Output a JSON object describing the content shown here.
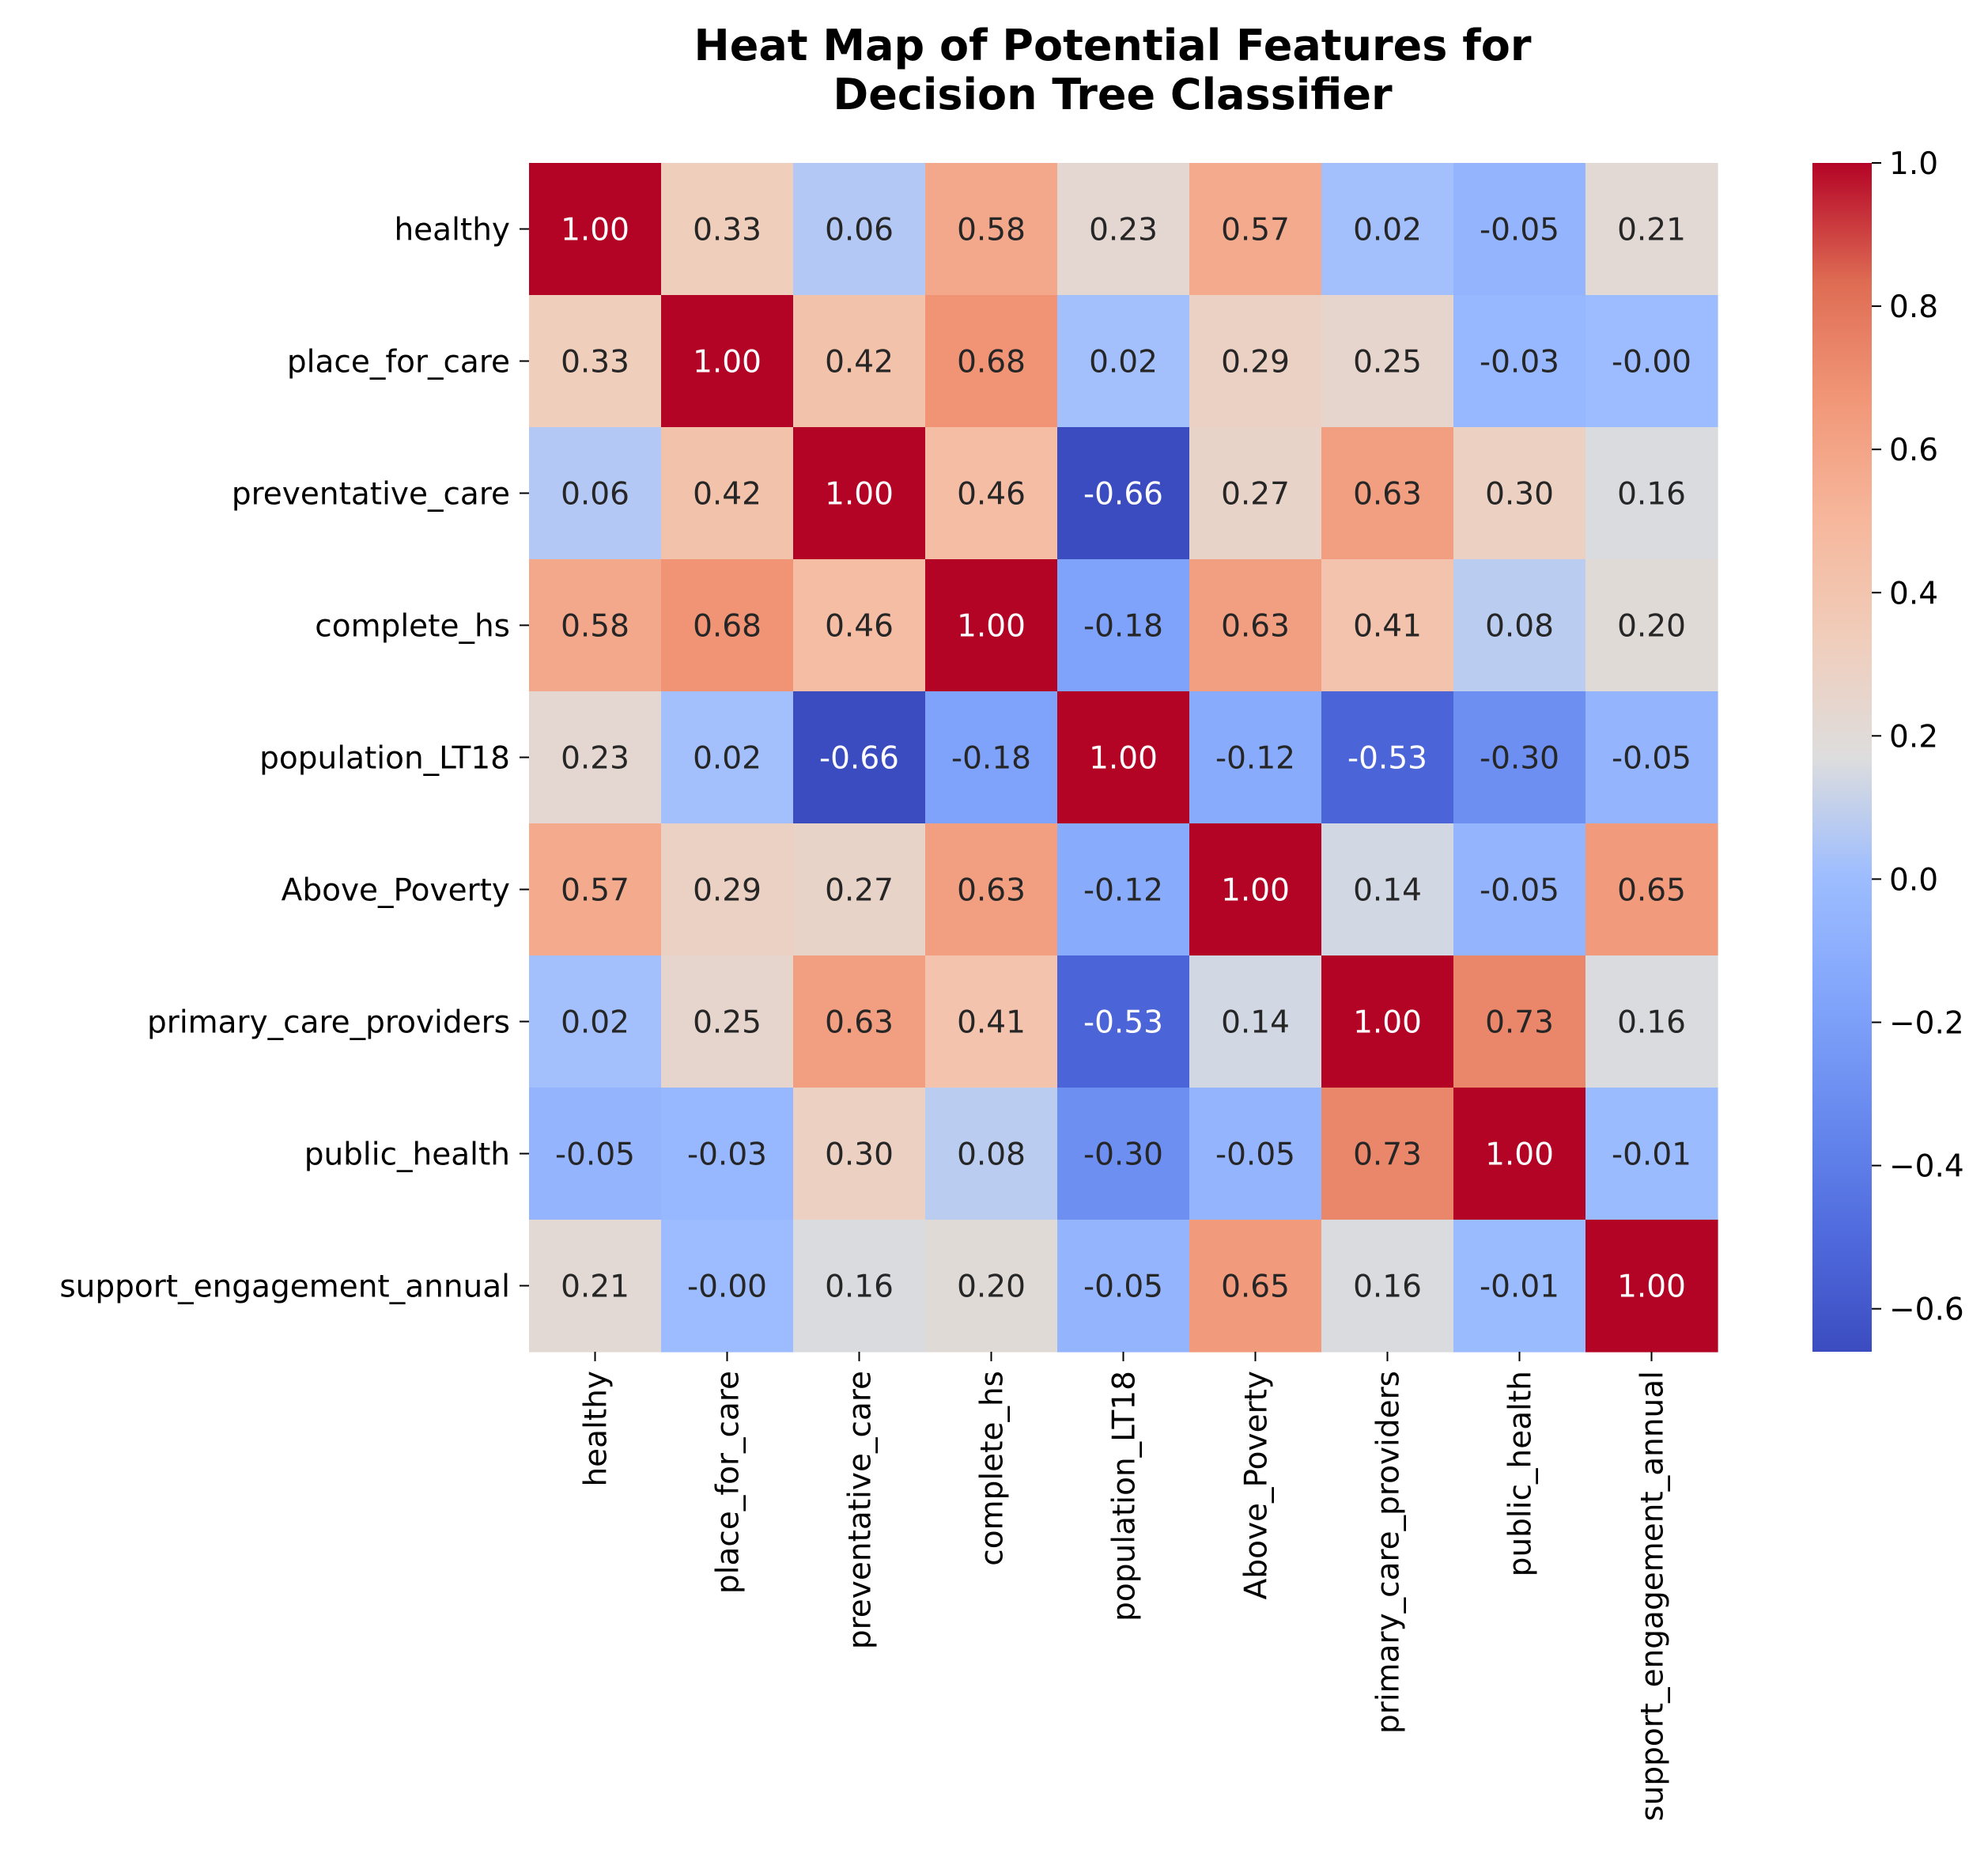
{
  "chart_data": {
    "type": "heatmap",
    "title": "Heat Map of Potential Features for\nDecision Tree Classifier",
    "xlabel": "",
    "ylabel": "",
    "row_labels": [
      "healthy",
      "place_for_care",
      "preventative_care",
      "complete_hs",
      "population_LT18",
      "Above_Poverty",
      "primary_care_providers",
      "public_health",
      "support_engagement_annual"
    ],
    "col_labels": [
      "healthy",
      "place_for_care",
      "preventative_care",
      "complete_hs",
      "population_LT18",
      "Above_Poverty",
      "primary_care_providers",
      "public_health",
      "support_engagement_annual"
    ],
    "values": [
      [
        1.0,
        0.33,
        0.06,
        0.58,
        0.23,
        0.57,
        0.02,
        -0.05,
        0.21
      ],
      [
        0.33,
        1.0,
        0.42,
        0.68,
        0.02,
        0.29,
        0.25,
        -0.03,
        -0.001
      ],
      [
        0.06,
        0.42,
        1.0,
        0.46,
        -0.66,
        0.27,
        0.63,
        0.3,
        0.16
      ],
      [
        0.58,
        0.68,
        0.46,
        1.0,
        -0.18,
        0.63,
        0.41,
        0.08,
        0.2
      ],
      [
        0.23,
        0.02,
        -0.66,
        -0.18,
        1.0,
        -0.12,
        -0.53,
        -0.3,
        -0.05
      ],
      [
        0.57,
        0.29,
        0.27,
        0.63,
        -0.12,
        1.0,
        0.14,
        -0.05,
        0.65
      ],
      [
        0.02,
        0.25,
        0.63,
        0.41,
        -0.53,
        0.14,
        1.0,
        0.73,
        0.16
      ],
      [
        -0.05,
        -0.03,
        0.3,
        0.08,
        -0.3,
        -0.05,
        0.73,
        1.0,
        -0.01
      ],
      [
        0.21,
        -0.001,
        0.16,
        0.2,
        -0.05,
        0.65,
        0.16,
        -0.01,
        1.0
      ]
    ],
    "colormap": "coolwarm",
    "vmin": -0.66,
    "vmax": 1.0,
    "value_format": "2 decimals",
    "colorbar_ticks": [
      1.0,
      0.8,
      0.6,
      0.4,
      0.2,
      0.0,
      -0.2,
      -0.4,
      -0.6
    ],
    "colorbar_tick_labels": [
      "1.0",
      "0.8",
      "0.6",
      "0.4",
      "0.2",
      "0.0",
      "−0.2",
      "−0.4",
      "−0.6"
    ],
    "grid": false
  }
}
